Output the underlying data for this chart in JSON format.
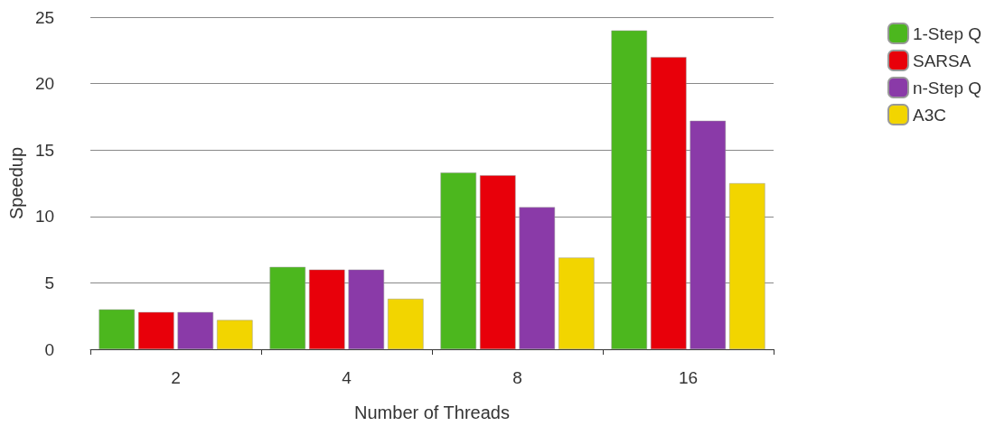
{
  "chart_data": {
    "type": "bar",
    "xlabel": "Number of Threads",
    "ylabel": "Speedup",
    "categories": [
      "2",
      "4",
      "8",
      "16"
    ],
    "series": [
      {
        "name": "1-Step Q",
        "color": "#4cb71e",
        "values": [
          3.0,
          6.2,
          13.3,
          24.0
        ]
      },
      {
        "name": "SARSA",
        "color": "#e8000a",
        "values": [
          2.8,
          6.0,
          13.1,
          22.0
        ]
      },
      {
        "name": "n-Step Q",
        "color": "#8a3aa8",
        "values": [
          2.8,
          6.0,
          10.7,
          17.2
        ]
      },
      {
        "name": "A3C",
        "color": "#f2d500",
        "values": [
          2.2,
          3.8,
          6.9,
          12.5
        ]
      }
    ],
    "ylim": [
      0,
      25
    ],
    "yticks": [
      0,
      5,
      10,
      15,
      20,
      25
    ],
    "grid": "y",
    "legend": "right"
  }
}
